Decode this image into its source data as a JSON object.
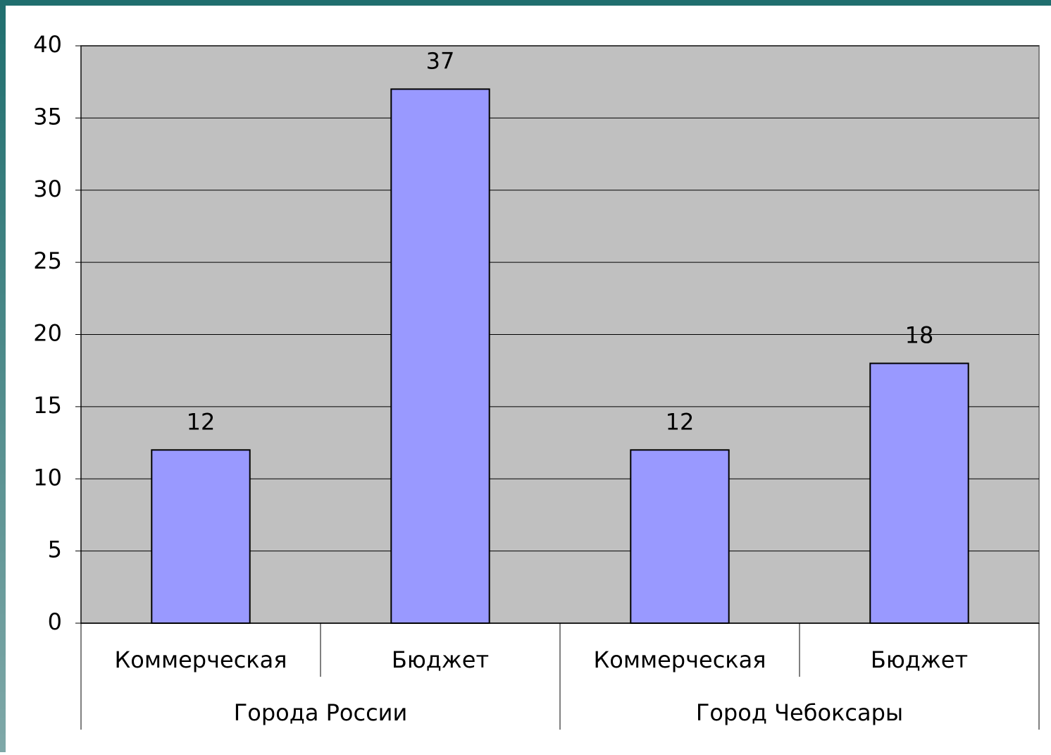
{
  "chart_data": {
    "type": "bar",
    "categories": [
      "Коммерческая",
      "Бюджет",
      "Коммерческая",
      "Бюджет"
    ],
    "groups": [
      "Города России",
      "Город Чебоксары"
    ],
    "values": [
      12,
      37,
      12,
      18
    ],
    "color": "#9999ff",
    "plot_background": "#c0c0c0",
    "ylim": [
      0,
      40
    ],
    "yticks": [
      0,
      5,
      10,
      15,
      20,
      25,
      30,
      35,
      40
    ],
    "grid": true
  }
}
